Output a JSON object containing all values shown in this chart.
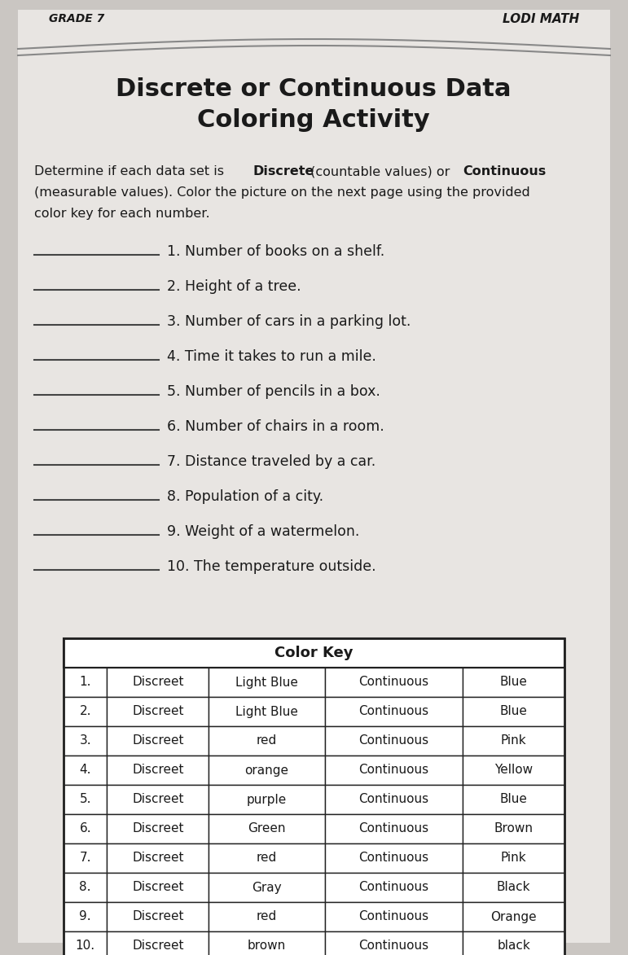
{
  "header_left": "GRADE 7",
  "header_right": "LODI MATH",
  "title_line1": "Discrete or Continuous Data",
  "title_line2": "Coloring Activity",
  "color_key_title": "Color Key",
  "questions": [
    "1. Number of books on a shelf.",
    "2. Height of a tree.",
    "3. Number of cars in a parking lot.",
    "4. Time it takes to run a mile.",
    "5. Number of pencils in a box.",
    "6. Number of chairs in a room.",
    "7. Distance traveled by a car.",
    "8. Population of a city.",
    "9. Weight of a watermelon.",
    "10. The temperature outside."
  ],
  "table_data": [
    [
      "1.",
      "Discreet",
      "Light Blue",
      "Continuous",
      "Blue"
    ],
    [
      "2.",
      "Discreet",
      "Light Blue",
      "Continuous",
      "Blue"
    ],
    [
      "3.",
      "Discreet",
      "red",
      "Continuous",
      "Pink"
    ],
    [
      "4.",
      "Discreet",
      "orange",
      "Continuous",
      "Yellow"
    ],
    [
      "5.",
      "Discreet",
      "purple",
      "Continuous",
      "Blue"
    ],
    [
      "6.",
      "Discreet",
      "Green",
      "Continuous",
      "Brown"
    ],
    [
      "7.",
      "Discreet",
      "red",
      "Continuous",
      "Pink"
    ],
    [
      "8.",
      "Discreet",
      "Gray",
      "Continuous",
      "Black"
    ],
    [
      "9.",
      "Discreet",
      "red",
      "Continuous",
      "Orange"
    ],
    [
      "10.",
      "Discreet",
      "brown",
      "Continuous",
      "black"
    ]
  ],
  "page_bg": "#cac6c2",
  "content_bg": "#e8e5e2",
  "white_bg": "#f0eeec",
  "header_bg": "#a8a4a0",
  "text_color": "#1a1a1a",
  "line_color": "#444444",
  "table_border_color": "#222222",
  "header_line_color": "#888888"
}
